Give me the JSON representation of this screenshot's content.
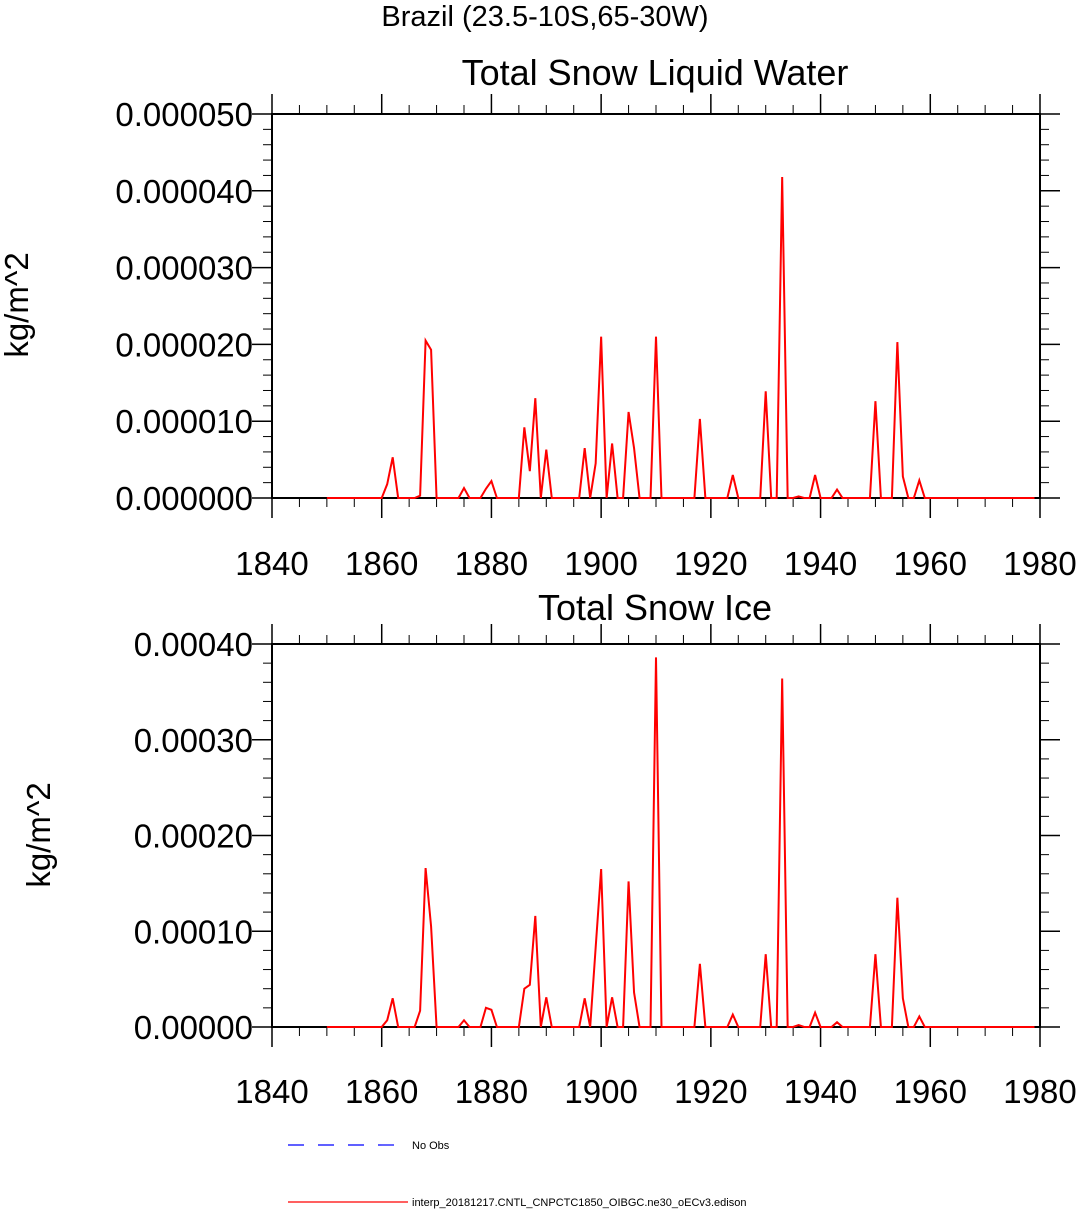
{
  "figure": {
    "main_title": "Brazil (23.5-10S,65-30W)"
  },
  "legend": {
    "entries": [
      {
        "label": "No Obs",
        "color": "#0000ff",
        "style": "dashed"
      },
      {
        "label": "interp_20181217.CNTL_CNPCTC1850_OIBGC.ne30_oECv3.edison",
        "color": "#ff0000",
        "style": "solid"
      }
    ]
  },
  "chart_data": [
    {
      "type": "line",
      "title": "Total Snow Liquid Water",
      "xlabel": "",
      "ylabel": "kg/m^2",
      "xlim": [
        1840,
        1980
      ],
      "ylim": [
        0,
        5e-05
      ],
      "xticks": [
        1840,
        1860,
        1880,
        1900,
        1920,
        1940,
        1960,
        1980
      ],
      "xtick_labels": [
        "1840",
        "1860",
        "1880",
        "1900",
        "1920",
        "1940",
        "1960",
        "1980"
      ],
      "yticks": [
        0,
        1e-05,
        2e-05,
        3e-05,
        4e-05,
        5e-05
      ],
      "ytick_labels": [
        "0.000000",
        "0.000010",
        "0.000020",
        "0.000030",
        "0.000040",
        "0.000050"
      ],
      "grid": false,
      "series": [
        {
          "name": "interp_20181217.CNTL_CNPCTC1850_OIBGC.ne30_oECv3.edison",
          "color": "#ff0000",
          "x": [
            1850,
            1851,
            1852,
            1853,
            1854,
            1855,
            1856,
            1857,
            1858,
            1859,
            1860,
            1861,
            1862,
            1863,
            1864,
            1865,
            1866,
            1867,
            1868,
            1869,
            1870,
            1871,
            1872,
            1873,
            1874,
            1875,
            1876,
            1877,
            1878,
            1879,
            1880,
            1881,
            1882,
            1883,
            1884,
            1885,
            1886,
            1887,
            1888,
            1889,
            1890,
            1891,
            1892,
            1893,
            1894,
            1895,
            1896,
            1897,
            1898,
            1899,
            1900,
            1901,
            1902,
            1903,
            1904,
            1905,
            1906,
            1907,
            1908,
            1909,
            1910,
            1911,
            1912,
            1913,
            1914,
            1915,
            1916,
            1917,
            1918,
            1919,
            1920,
            1921,
            1922,
            1923,
            1924,
            1925,
            1926,
            1927,
            1928,
            1929,
            1930,
            1931,
            1932,
            1933,
            1934,
            1935,
            1936,
            1937,
            1938,
            1939,
            1940,
            1941,
            1942,
            1943,
            1944,
            1945,
            1946,
            1947,
            1948,
            1949,
            1950,
            1951,
            1952,
            1953,
            1954,
            1955,
            1956,
            1957,
            1958,
            1959,
            1960,
            1961,
            1962,
            1963,
            1964,
            1965,
            1966,
            1967,
            1968,
            1969,
            1970,
            1971,
            1972,
            1973,
            1974,
            1975,
            1976,
            1977,
            1978,
            1979
          ],
          "y": [
            0,
            0,
            0,
            0,
            0,
            0,
            0,
            0,
            0,
            0,
            0,
            1.8e-06,
            5.3e-06,
            0,
            0,
            0,
            0,
            3e-07,
            2.05e-05,
            1.93e-05,
            0,
            0,
            0,
            0,
            0,
            1.3e-06,
            0,
            0,
            0,
            1.2e-06,
            2.2e-06,
            0,
            0,
            0,
            0,
            0,
            9.2e-06,
            3.5e-06,
            1.3e-05,
            0,
            6.3e-06,
            0,
            0,
            0,
            0,
            0,
            0,
            6.5e-06,
            0,
            4.5e-06,
            2.1e-05,
            0,
            7.1e-06,
            0,
            0,
            1.12e-05,
            6.5e-06,
            0,
            0,
            0,
            2.1e-05,
            0,
            0,
            0,
            0,
            0,
            0,
            0,
            1.03e-05,
            0,
            0,
            0,
            0,
            0,
            3e-06,
            0,
            0,
            0,
            0,
            0,
            1.39e-05,
            0,
            0,
            4.18e-05,
            0,
            0,
            2e-07,
            0,
            0,
            3e-06,
            0,
            0,
            0,
            1.1e-06,
            0,
            0,
            0,
            0,
            0,
            0,
            1.26e-05,
            0,
            0,
            0,
            2.03e-05,
            2.8e-06,
            0,
            0,
            2.3e-06,
            0,
            0,
            0,
            0,
            0,
            0,
            0,
            0,
            0,
            0,
            0,
            0,
            0,
            0,
            0,
            0,
            0,
            0,
            0,
            0,
            0
          ]
        }
      ]
    },
    {
      "type": "line",
      "title": "Total Snow Ice",
      "xlabel": "",
      "ylabel": "kg/m^2",
      "xlim": [
        1840,
        1980
      ],
      "ylim": [
        0,
        0.0004
      ],
      "xticks": [
        1840,
        1860,
        1880,
        1900,
        1920,
        1940,
        1960,
        1980
      ],
      "xtick_labels": [
        "1840",
        "1860",
        "1880",
        "1900",
        "1920",
        "1940",
        "1960",
        "1980"
      ],
      "yticks": [
        0,
        0.0001,
        0.0002,
        0.0003,
        0.0004
      ],
      "ytick_labels": [
        "0.00000",
        "0.00010",
        "0.00020",
        "0.00030",
        "0.00040"
      ],
      "grid": false,
      "series": [
        {
          "name": "interp_20181217.CNTL_CNPCTC1850_OIBGC.ne30_oECv3.edison",
          "color": "#ff0000",
          "x": [
            1850,
            1851,
            1852,
            1853,
            1854,
            1855,
            1856,
            1857,
            1858,
            1859,
            1860,
            1861,
            1862,
            1863,
            1864,
            1865,
            1866,
            1867,
            1868,
            1869,
            1870,
            1871,
            1872,
            1873,
            1874,
            1875,
            1876,
            1877,
            1878,
            1879,
            1880,
            1881,
            1882,
            1883,
            1884,
            1885,
            1886,
            1887,
            1888,
            1889,
            1890,
            1891,
            1892,
            1893,
            1894,
            1895,
            1896,
            1897,
            1898,
            1899,
            1900,
            1901,
            1902,
            1903,
            1904,
            1905,
            1906,
            1907,
            1908,
            1909,
            1910,
            1911,
            1912,
            1913,
            1914,
            1915,
            1916,
            1917,
            1918,
            1919,
            1920,
            1921,
            1922,
            1923,
            1924,
            1925,
            1926,
            1927,
            1928,
            1929,
            1930,
            1931,
            1932,
            1933,
            1934,
            1935,
            1936,
            1937,
            1938,
            1939,
            1940,
            1941,
            1942,
            1943,
            1944,
            1945,
            1946,
            1947,
            1948,
            1949,
            1950,
            1951,
            1952,
            1953,
            1954,
            1955,
            1956,
            1957,
            1958,
            1959,
            1960,
            1961,
            1962,
            1963,
            1964,
            1965,
            1966,
            1967,
            1968,
            1969,
            1970,
            1971,
            1972,
            1973,
            1974,
            1975,
            1976,
            1977,
            1978,
            1979
          ],
          "y": [
            0,
            0,
            0,
            0,
            0,
            0,
            0,
            0,
            0,
            0,
            0,
            7e-06,
            3e-05,
            0,
            0,
            0,
            0,
            1.7e-05,
            0.000166,
            0.000105,
            0,
            0,
            0,
            0,
            0,
            7e-06,
            0,
            0,
            0,
            2e-05,
            1.8e-05,
            0,
            0,
            0,
            0,
            0,
            4e-05,
            4.4e-05,
            0.000116,
            0,
            3.1e-05,
            0,
            0,
            0,
            0,
            0,
            0,
            3e-05,
            0,
            8.3e-05,
            0.000165,
            0,
            3.1e-05,
            0,
            0,
            0.000152,
            3.6e-05,
            0,
            0,
            0,
            0.000386,
            0,
            0,
            0,
            0,
            0,
            0,
            0,
            6.6e-05,
            0,
            0,
            0,
            0,
            0,
            1.3e-05,
            0,
            0,
            0,
            0,
            0,
            7.6e-05,
            0,
            0,
            0.000364,
            0,
            0,
            2e-06,
            0,
            0,
            1.5e-05,
            0,
            0,
            0,
            5e-06,
            0,
            0,
            0,
            0,
            0,
            0,
            7.6e-05,
            0,
            0,
            0,
            0.000135,
            3e-05,
            0,
            0,
            1.1e-05,
            0,
            0,
            0,
            0,
            0,
            0,
            0,
            0,
            0,
            0,
            0,
            0,
            0,
            0,
            0,
            0,
            0,
            0,
            0,
            0,
            0
          ]
        }
      ]
    }
  ]
}
